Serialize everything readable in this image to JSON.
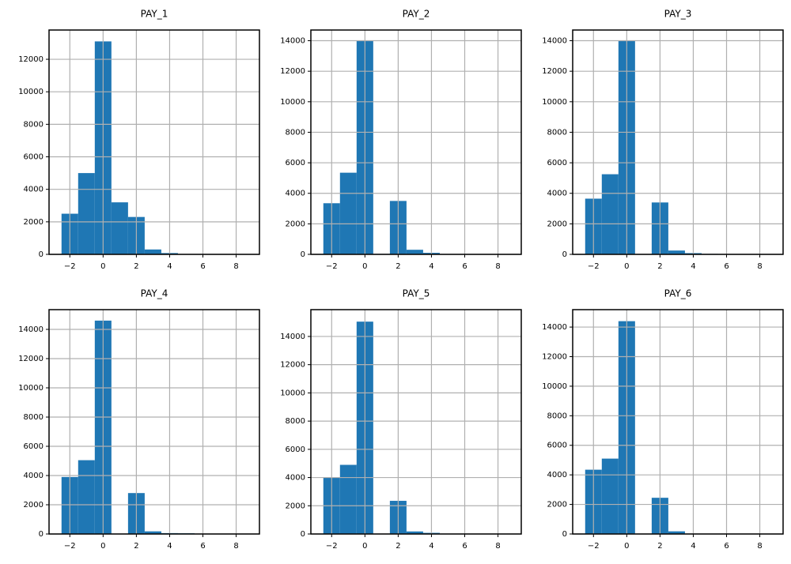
{
  "chart_data": [
    {
      "type": "histogram",
      "title": "PAY_1",
      "bins": [
        -2.5,
        -1.5,
        -0.5,
        0.5,
        1.5,
        2.5,
        3.5,
        4.5,
        5.5,
        6.5,
        7.5
      ],
      "values": [
        2500,
        5000,
        13100,
        3200,
        2300,
        300,
        80,
        20,
        10,
        20
      ],
      "color": "#1f77b4",
      "xlim": [
        -3.25,
        9.4
      ],
      "ylim": [
        0,
        13800
      ],
      "xticks": [
        {
          "value": -2,
          "label": "−2"
        },
        0,
        2,
        4,
        6,
        8
      ],
      "yticks": [
        0,
        2000,
        4000,
        6000,
        8000,
        10000,
        12000
      ],
      "grid": true
    },
    {
      "type": "histogram",
      "title": "PAY_2",
      "bins": [
        -2.5,
        -1.5,
        -0.5,
        0.5,
        1.5,
        2.5,
        3.5,
        4.5,
        5.5,
        6.5,
        7.5
      ],
      "values": [
        3350,
        5350,
        14000,
        30,
        3500,
        300,
        100,
        20,
        10,
        5
      ],
      "color": "#1f77b4",
      "xlim": [
        -3.25,
        9.4
      ],
      "ylim": [
        0,
        14700
      ],
      "xticks": [
        {
          "value": -2,
          "label": "−2"
        },
        0,
        2,
        4,
        6,
        8
      ],
      "yticks": [
        0,
        2000,
        4000,
        6000,
        8000,
        10000,
        12000,
        14000
      ],
      "grid": true
    },
    {
      "type": "histogram",
      "title": "PAY_3",
      "bins": [
        -2.5,
        -1.5,
        -0.5,
        0.5,
        1.5,
        2.5,
        3.5,
        4.5,
        5.5,
        6.5,
        7.5
      ],
      "values": [
        3650,
        5250,
        14000,
        5,
        3400,
        250,
        80,
        30,
        20,
        5
      ],
      "color": "#1f77b4",
      "xlim": [
        -3.25,
        9.4
      ],
      "ylim": [
        0,
        14700
      ],
      "xticks": [
        {
          "value": -2,
          "label": "−2"
        },
        0,
        2,
        4,
        6,
        8
      ],
      "yticks": [
        0,
        2000,
        4000,
        6000,
        8000,
        10000,
        12000,
        14000
      ],
      "grid": true
    },
    {
      "type": "histogram",
      "title": "PAY_4",
      "bins": [
        -2.5,
        -1.5,
        -0.5,
        0.5,
        1.5,
        2.5,
        3.5,
        4.5,
        5.5,
        6.5,
        7.5
      ],
      "values": [
        3900,
        5050,
        14600,
        5,
        2800,
        180,
        60,
        50,
        5,
        5
      ],
      "color": "#1f77b4",
      "xlim": [
        -3.25,
        9.4
      ],
      "ylim": [
        0,
        15350
      ],
      "xticks": [
        {
          "value": -2,
          "label": "−2"
        },
        0,
        2,
        4,
        6,
        8
      ],
      "yticks": [
        0,
        2000,
        4000,
        6000,
        8000,
        10000,
        12000,
        14000
      ],
      "grid": true
    },
    {
      "type": "histogram",
      "title": "PAY_5",
      "bins": [
        -2.5,
        -1.5,
        -0.5,
        0.5,
        1.5,
        2.5,
        3.5,
        4.5,
        5.5,
        6.5,
        7.5
      ],
      "values": [
        4000,
        4900,
        15050,
        0,
        2350,
        180,
        80,
        20,
        5,
        5
      ],
      "color": "#1f77b4",
      "xlim": [
        -3.25,
        9.4
      ],
      "ylim": [
        0,
        15900
      ],
      "xticks": [
        {
          "value": -2,
          "label": "−2"
        },
        0,
        2,
        4,
        6,
        8
      ],
      "yticks": [
        0,
        2000,
        4000,
        6000,
        8000,
        10000,
        12000,
        14000
      ],
      "grid": true
    },
    {
      "type": "histogram",
      "title": "PAY_6",
      "bins": [
        -2.5,
        -1.5,
        -0.5,
        0.5,
        1.5,
        2.5,
        3.5,
        4.5,
        5.5,
        6.5,
        7.5
      ],
      "values": [
        4350,
        5100,
        14400,
        0,
        2450,
        180,
        20,
        20,
        20,
        5
      ],
      "color": "#1f77b4",
      "xlim": [
        -3.25,
        9.4
      ],
      "ylim": [
        0,
        15180
      ],
      "xticks": [
        {
          "value": -2,
          "label": "−2"
        },
        0,
        2,
        4,
        6,
        8
      ],
      "yticks": [
        0,
        2000,
        4000,
        6000,
        8000,
        10000,
        12000,
        14000
      ],
      "grid": true
    }
  ]
}
